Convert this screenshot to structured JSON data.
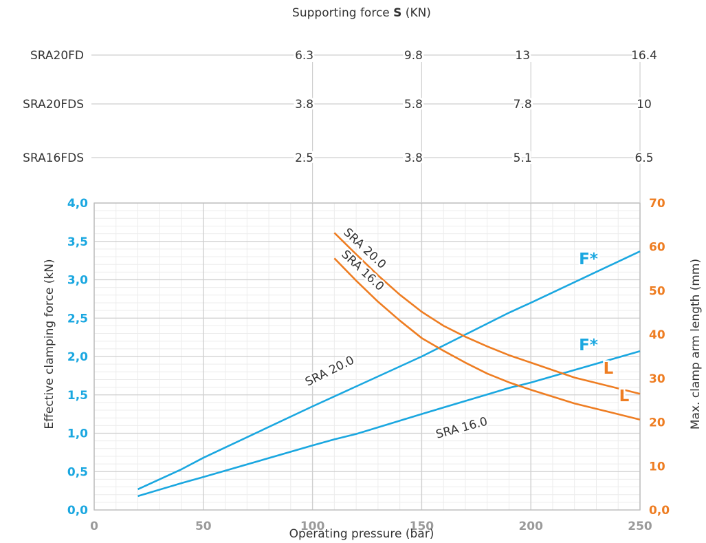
{
  "chart_data": {
    "type": "line",
    "supporting_force_table": {
      "title_prefix": "Supporting force ",
      "title_bold": "S",
      "title_suffix": " (KN)",
      "pressures": [
        100,
        150,
        200,
        250
      ],
      "rows": [
        {
          "label": "SRA20FD",
          "values": [
            "6.3",
            "9.8",
            "13",
            "16.4"
          ]
        },
        {
          "label": "SRA20FDS",
          "values": [
            "3.8",
            "5.8",
            "7.8",
            "10"
          ]
        },
        {
          "label": "SRA16FDS",
          "values": [
            "2.5",
            "3.8",
            "5.1",
            "6.5"
          ]
        }
      ]
    },
    "xlabel": "Operating pressure (bar)",
    "ylabel_left": "Effective clamping force (kN)",
    "ylabel_right": "Max. clamp arm length (mm)",
    "xlim": [
      0,
      250
    ],
    "ylim_left": [
      0,
      4
    ],
    "ylim_right": [
      0,
      70
    ],
    "x_ticks": [
      {
        "value": 0,
        "label": "0"
      },
      {
        "value": 50,
        "label": "50"
      },
      {
        "value": 100,
        "label": "100"
      },
      {
        "value": 150,
        "label": "150"
      },
      {
        "value": 200,
        "label": "200"
      },
      {
        "value": 250,
        "label": "250"
      }
    ],
    "y_ticks_left": [
      {
        "value": 0,
        "label": "0,0"
      },
      {
        "value": 0.5,
        "label": "0,5"
      },
      {
        "value": 1,
        "label": "1,0"
      },
      {
        "value": 1.5,
        "label": "1,5"
      },
      {
        "value": 2,
        "label": "2,0"
      },
      {
        "value": 2.5,
        "label": "2,5"
      },
      {
        "value": 3,
        "label": "3,0"
      },
      {
        "value": 3.5,
        "label": "3,5"
      },
      {
        "value": 4,
        "label": "4,0"
      }
    ],
    "y_ticks_right": [
      {
        "value": 0,
        "label": "0,0"
      },
      {
        "value": 10,
        "label": "10"
      },
      {
        "value": 20,
        "label": "20"
      },
      {
        "value": 30,
        "label": "30"
      },
      {
        "value": 40,
        "label": "40"
      },
      {
        "value": 50,
        "label": "50"
      },
      {
        "value": 60,
        "label": "60"
      },
      {
        "value": 70,
        "label": "70"
      }
    ],
    "grid": true,
    "colors": {
      "force": "#1aa7e0",
      "length": "#ee7d22",
      "grid_major": "#cfcfcf",
      "grid_minor": "#ececec",
      "text": "#333333"
    },
    "series": [
      {
        "key": "f20",
        "axis": "left",
        "color": "force",
        "curve_label": "SRA 20.0",
        "end_label": "F*",
        "x": [
          20,
          40,
          50,
          100,
          150,
          190,
          200,
          250
        ],
        "y": [
          0.27,
          0.53,
          0.68,
          1.35,
          2.0,
          2.57,
          2.7,
          3.37
        ]
      },
      {
        "key": "f16",
        "axis": "left",
        "color": "force",
        "curve_label": "SRA 16.0",
        "end_label": "F*",
        "x": [
          20,
          40,
          50,
          100,
          110,
          120,
          150,
          190,
          200,
          250
        ],
        "y": [
          0.18,
          0.35,
          0.43,
          0.84,
          0.92,
          0.99,
          1.25,
          1.59,
          1.66,
          2.07
        ]
      },
      {
        "key": "l20",
        "axis": "right",
        "color": "length",
        "curve_label": "SRA 20.0",
        "end_label": "L",
        "x": [
          110,
          120,
          130,
          140,
          150,
          160,
          170,
          180,
          190,
          200,
          220,
          250
        ],
        "y": [
          63.2,
          58.3,
          53.5,
          49.1,
          45.2,
          42.0,
          39.5,
          37.3,
          35.3,
          33.6,
          30.2,
          26.5
        ]
      },
      {
        "key": "l16",
        "axis": "right",
        "color": "length",
        "curve_label": "SRA 16.0",
        "end_label": "L",
        "x": [
          110,
          120,
          130,
          140,
          150,
          160,
          170,
          180,
          190,
          200,
          220,
          250
        ],
        "y": [
          57.4,
          52.3,
          47.5,
          43.2,
          39.2,
          36.3,
          33.6,
          31.1,
          29.1,
          27.4,
          24.3,
          20.6
        ]
      }
    ]
  }
}
